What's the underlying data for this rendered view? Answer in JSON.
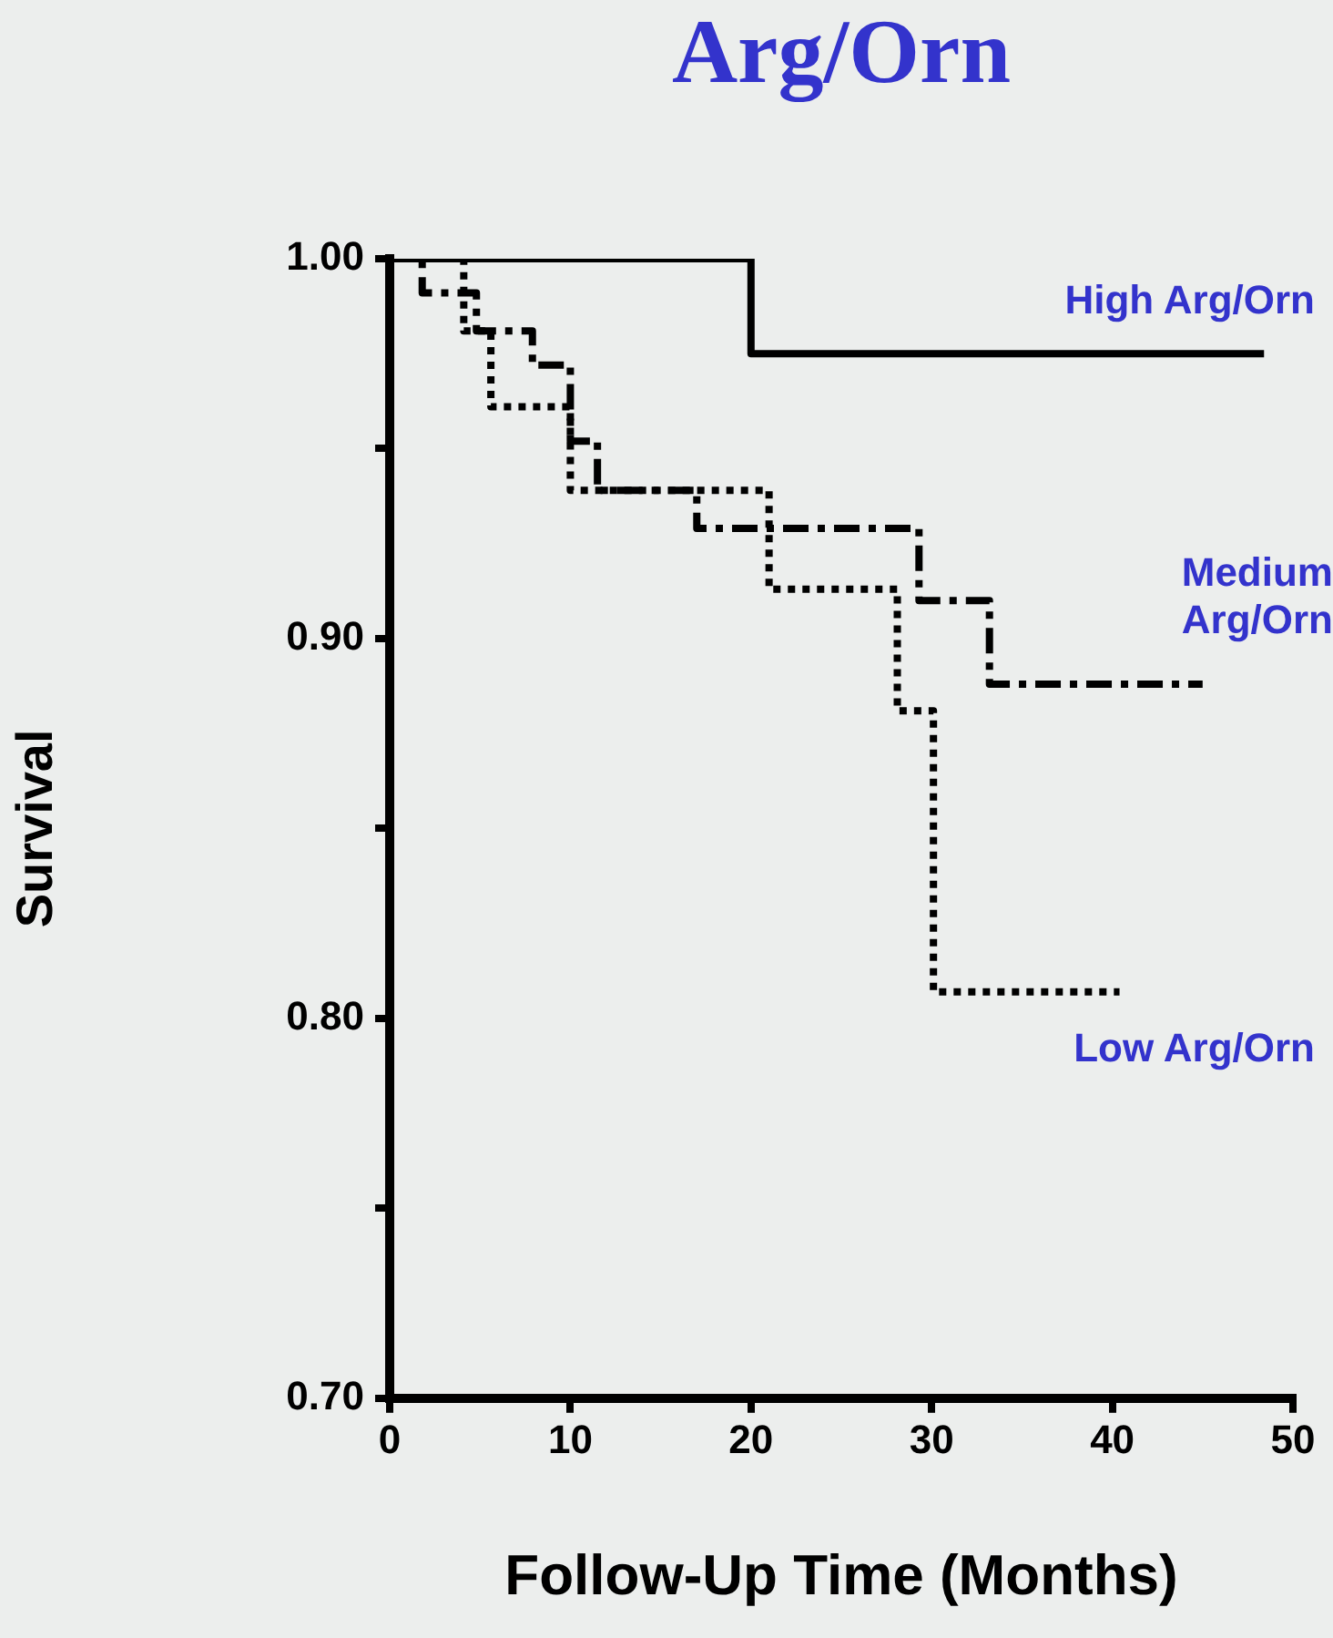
{
  "chart_data": {
    "type": "step",
    "title": "Arg/Orn",
    "xlabel": "Follow-Up Time (Months)",
    "ylabel": "Survival",
    "xlim": [
      0,
      50
    ],
    "xticks": [
      0,
      10,
      20,
      30,
      40,
      50
    ],
    "ylim": [
      0.7,
      1.0
    ],
    "yticks": [
      {
        "value": 0.7,
        "label": "0.70"
      },
      {
        "value": 0.75,
        "label": null
      },
      {
        "value": 0.8,
        "label": "0.80"
      },
      {
        "value": 0.85,
        "label": null
      },
      {
        "value": 0.9,
        "label": "0.90"
      },
      {
        "value": 0.95,
        "label": null
      },
      {
        "value": 1.0,
        "label": "1.00"
      }
    ],
    "grid": false,
    "legend": false,
    "marker": "none",
    "series": [
      {
        "name": "High Arg/Orn",
        "color": "#000000",
        "line_style": "solid",
        "x": [
          0,
          20,
          48.4
        ],
        "values": [
          1.0,
          0.975,
          0.975
        ]
      },
      {
        "name": "Medium Arg/Orn",
        "color": "#000000",
        "line_style": "dashed",
        "x": [
          0,
          1.8,
          4.8,
          7.9,
          10,
          11.5,
          17,
          29.3,
          33.2,
          45
        ],
        "values": [
          1.0,
          0.991,
          0.981,
          0.972,
          0.952,
          0.939,
          0.929,
          0.91,
          0.888,
          0.888
        ]
      },
      {
        "name": "Low Arg/Orn",
        "color": "#000000",
        "line_style": "dotted",
        "x": [
          0,
          4.1,
          5.6,
          10,
          21,
          28.1,
          30.1,
          40.4
        ],
        "values": [
          1.0,
          0.981,
          0.961,
          0.939,
          0.913,
          0.881,
          0.807,
          0.807
        ]
      }
    ]
  }
}
